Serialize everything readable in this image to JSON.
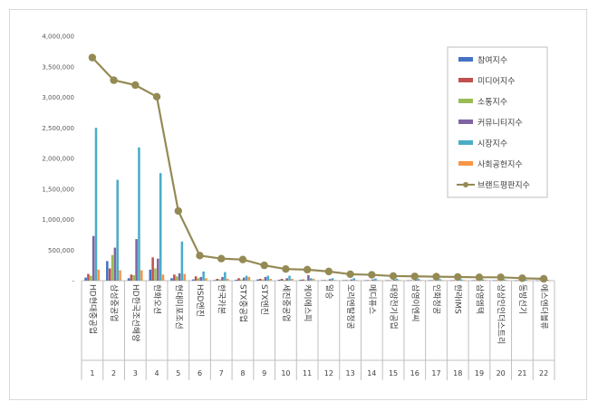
{
  "chart_data": {
    "type": "bar",
    "title": "",
    "xlabel": "",
    "ylabel": "",
    "ylim": [
      0,
      4000000
    ],
    "yticks": [
      "-",
      "500,000",
      "1,000,000",
      "1,500,000",
      "2,000,000",
      "2,500,000",
      "3,000,000",
      "3,500,000",
      "4,000,000"
    ],
    "categories": [
      "HD현대중공업",
      "삼성중공업",
      "HD한국조선해양",
      "한화오션",
      "현대미포조선",
      "HSD엔진",
      "한국카본",
      "STX중공업",
      "STX엔진",
      "세진중공업",
      "케이에스피",
      "일승",
      "오리엔탈정공",
      "메디퓨스",
      "대양전기공업",
      "삼영이엔씨",
      "인화정공",
      "한라IMS",
      "삼영엠텍",
      "상상인인더스트리",
      "동방선기",
      "에스엔더블류"
    ],
    "indices": [
      "1",
      "2",
      "3",
      "4",
      "5",
      "6",
      "7",
      "8",
      "9",
      "10",
      "11",
      "12",
      "13",
      "14",
      "15",
      "16",
      "17",
      "18",
      "19",
      "20",
      "21",
      "22"
    ],
    "series": [
      {
        "name": "참여지수",
        "color": "#4472c4",
        "kind": "bar",
        "values": [
          50000,
          320000,
          40000,
          180000,
          40000,
          20000,
          10000,
          15000,
          20000,
          15000,
          15000,
          8000,
          8000,
          5000,
          5000,
          5000,
          5000,
          5000,
          5000,
          5000,
          3000,
          2000
        ]
      },
      {
        "name": "미디어지수",
        "color": "#c0504d",
        "kind": "bar",
        "values": [
          110000,
          200000,
          100000,
          380000,
          100000,
          70000,
          30000,
          40000,
          30000,
          30000,
          20000,
          10000,
          10000,
          10000,
          8000,
          8000,
          8000,
          8000,
          8000,
          8000,
          5000,
          5000
        ]
      },
      {
        "name": "소통지수",
        "color": "#9bbb59",
        "kind": "bar",
        "values": [
          80000,
          420000,
          90000,
          200000,
          70000,
          40000,
          20000,
          20000,
          20000,
          15000,
          10000,
          8000,
          8000,
          8000,
          5000,
          5000,
          5000,
          5000,
          5000,
          5000,
          3000,
          3000
        ]
      },
      {
        "name": "커뮤니티지수",
        "color": "#8064a2",
        "kind": "bar",
        "values": [
          730000,
          540000,
          680000,
          360000,
          120000,
          60000,
          60000,
          50000,
          60000,
          40000,
          90000,
          25000,
          20000,
          20000,
          15000,
          15000,
          10000,
          10000,
          10000,
          10000,
          8000,
          8000
        ]
      },
      {
        "name": "시장지수",
        "color": "#4bacc6",
        "kind": "bar",
        "values": [
          2500000,
          1650000,
          2180000,
          1760000,
          640000,
          150000,
          140000,
          80000,
          80000,
          80000,
          40000,
          40000,
          40000,
          35000,
          30000,
          30000,
          25000,
          20000,
          20000,
          20000,
          15000,
          15000
        ]
      },
      {
        "name": "사회공헌지수",
        "color": "#f79646",
        "kind": "bar",
        "values": [
          180000,
          170000,
          170000,
          100000,
          110000,
          40000,
          30000,
          60000,
          30000,
          30000,
          30000,
          10000,
          10000,
          10000,
          10000,
          10000,
          10000,
          10000,
          10000,
          10000,
          5000,
          5000
        ]
      },
      {
        "name": "브랜드평판지수",
        "color": "#948a54",
        "kind": "line",
        "values": [
          3650000,
          3280000,
          3200000,
          3010000,
          1140000,
          410000,
          360000,
          345000,
          250000,
          190000,
          180000,
          150000,
          105000,
          95000,
          75000,
          70000,
          65000,
          60000,
          55000,
          55000,
          40000,
          30000
        ]
      }
    ]
  }
}
